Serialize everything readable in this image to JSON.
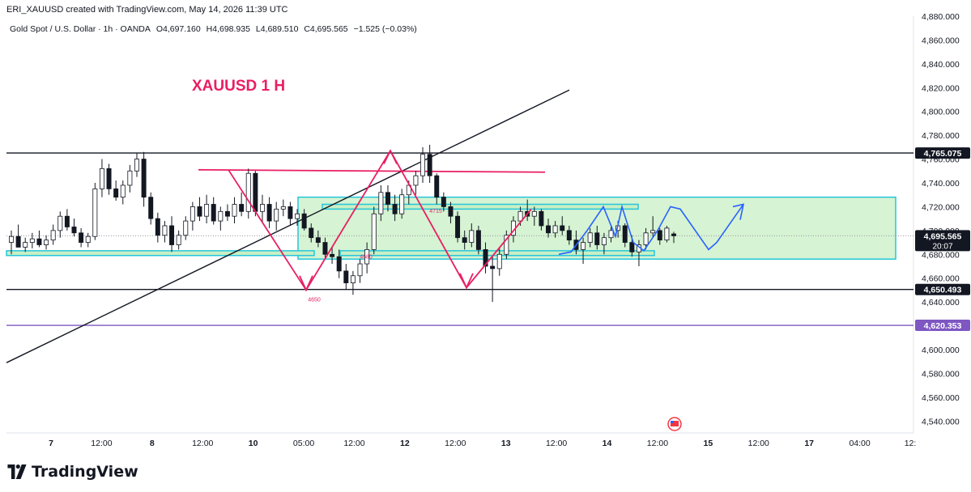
{
  "header": {
    "created_by": "ERI_XAUUSD created with TradingView.com, May 14, 2026 11:39 UTC"
  },
  "legend": {
    "symbol": "Gold Spot / U.S. Dollar · 1h · OANDA",
    "open": "O4,697.160",
    "high": "H4,698.935",
    "low": "L4,689.510",
    "close": "C4,695.565",
    "change": "−1.525 (−0.03%)",
    "change_color": "#f23645"
  },
  "annotation_title": "XAUUSD 1 H",
  "footer": {
    "brand": "TradingView"
  },
  "colors": {
    "bull": "#ffffff",
    "bear": "#131722",
    "zone_fill": "#c8efc4",
    "zone_border": "#26c6da",
    "pink": "#e91e63",
    "blue_arrow": "#2962ff",
    "purple": "#7e57c2"
  },
  "chart_data": {
    "type": "candlestick",
    "title": "XAUUSD 1 H",
    "symbol": "Gold Spot / U.S. Dollar",
    "timeframe": "1h",
    "ylim": [
      4530,
      4880
    ],
    "y_ticks": [
      "4,540.000",
      "4,560.000",
      "4,580.000",
      "4,600.000",
      "4,620.000",
      "4,640.000",
      "4,660.000",
      "4,680.000",
      "4,700.000",
      "4,720.000",
      "4,740.000",
      "4,760.000",
      "4,780.000",
      "4,800.000",
      "4,820.000",
      "4,840.000",
      "4,860.000",
      "4,880.000"
    ],
    "x_ticks": [
      "7",
      "12:00",
      "8",
      "12:00",
      "10",
      "05:00",
      "12:00",
      "12",
      "12:00",
      "13",
      "12:00",
      "14",
      "12:00",
      "15",
      "12:00",
      "17",
      "04:00",
      "12:"
    ],
    "price_labels": [
      {
        "text": "4,765.075",
        "value": 4765.075,
        "color": "#131722"
      },
      {
        "text": "4,695.565",
        "value": 4695.565,
        "color": "#131722",
        "sub": "20:07"
      },
      {
        "text": "4,650.493",
        "value": 4650.493,
        "color": "#131722"
      },
      {
        "text": "4,620.353",
        "value": 4620.353,
        "color": "#7e57c2"
      }
    ],
    "horizontal_lines": [
      4765.075,
      4650.493,
      4620.353
    ],
    "zone": {
      "top": 4728,
      "bottom": 4676
    },
    "small_labels": [
      "4650",
      "4680",
      "4715"
    ],
    "ohlc_last": {
      "open": 4697.16,
      "high": 4698.935,
      "low": 4689.51,
      "close": 4695.565
    },
    "candles": [
      [
        4690,
        4700,
        4680,
        4695
      ],
      [
        4695,
        4705,
        4688,
        4686
      ],
      [
        4686,
        4694,
        4682,
        4690
      ],
      [
        4690,
        4698,
        4685,
        4693
      ],
      [
        4693,
        4700,
        4686,
        4688
      ],
      [
        4688,
        4696,
        4684,
        4692
      ],
      [
        4692,
        4705,
        4688,
        4700
      ],
      [
        4700,
        4716,
        4694,
        4712
      ],
      [
        4712,
        4718,
        4700,
        4703
      ],
      [
        4703,
        4710,
        4695,
        4698
      ],
      [
        4698,
        4702,
        4686,
        4690
      ],
      [
        4690,
        4698,
        4686,
        4695
      ],
      [
        4695,
        4740,
        4692,
        4735
      ],
      [
        4735,
        4760,
        4728,
        4752
      ],
      [
        4752,
        4756,
        4730,
        4735
      ],
      [
        4735,
        4742,
        4725,
        4728
      ],
      [
        4728,
        4742,
        4722,
        4738
      ],
      [
        4738,
        4755,
        4732,
        4750
      ],
      [
        4750,
        4765,
        4745,
        4760
      ],
      [
        4760,
        4766,
        4720,
        4728
      ],
      [
        4728,
        4732,
        4705,
        4710
      ],
      [
        4710,
        4715,
        4690,
        4696
      ],
      [
        4696,
        4708,
        4690,
        4704
      ],
      [
        4704,
        4712,
        4682,
        4688
      ],
      [
        4688,
        4700,
        4684,
        4696
      ],
      [
        4696,
        4712,
        4692,
        4708
      ],
      [
        4708,
        4724,
        4700,
        4720
      ],
      [
        4720,
        4728,
        4708,
        4712
      ],
      [
        4712,
        4730,
        4706,
        4722
      ],
      [
        4722,
        4728,
        4705,
        4708
      ],
      [
        4708,
        4720,
        4700,
        4716
      ],
      [
        4716,
        4722,
        4708,
        4712
      ],
      [
        4712,
        4728,
        4706,
        4722
      ],
      [
        4722,
        4732,
        4712,
        4716
      ],
      [
        4716,
        4752,
        4710,
        4748
      ],
      [
        4748,
        4750,
        4712,
        4716
      ],
      [
        4716,
        4730,
        4706,
        4722
      ],
      [
        4722,
        4728,
        4702,
        4708
      ],
      [
        4708,
        4724,
        4700,
        4718
      ],
      [
        4718,
        4726,
        4712,
        4720
      ],
      [
        4720,
        4724,
        4704,
        4710
      ],
      [
        4710,
        4718,
        4704,
        4714
      ],
      [
        4714,
        4718,
        4700,
        4702
      ],
      [
        4702,
        4706,
        4690,
        4694
      ],
      [
        4694,
        4700,
        4686,
        4690
      ],
      [
        4690,
        4694,
        4676,
        4680
      ],
      [
        4680,
        4686,
        4672,
        4678
      ],
      [
        4678,
        4684,
        4660,
        4666
      ],
      [
        4666,
        4672,
        4650,
        4656
      ],
      [
        4656,
        4666,
        4646,
        4662
      ],
      [
        4662,
        4676,
        4656,
        4672
      ],
      [
        4672,
        4690,
        4664,
        4684
      ],
      [
        4684,
        4720,
        4680,
        4714
      ],
      [
        4714,
        4738,
        4708,
        4732
      ],
      [
        4732,
        4738,
        4716,
        4722
      ],
      [
        4722,
        4730,
        4708,
        4714
      ],
      [
        4714,
        4735,
        4710,
        4730
      ],
      [
        4730,
        4742,
        4722,
        4738
      ],
      [
        4738,
        4750,
        4730,
        4746
      ],
      [
        4746,
        4770,
        4740,
        4764
      ],
      [
        4764,
        4772,
        4740,
        4746
      ],
      [
        4746,
        4748,
        4722,
        4728
      ],
      [
        4728,
        4732,
        4716,
        4720
      ],
      [
        4720,
        4724,
        4706,
        4712
      ],
      [
        4712,
        4716,
        4690,
        4694
      ],
      [
        4694,
        4700,
        4684,
        4690
      ],
      [
        4690,
        4706,
        4686,
        4700
      ],
      [
        4700,
        4704,
        4680,
        4684
      ],
      [
        4684,
        4690,
        4664,
        4670
      ],
      [
        4670,
        4678,
        4640,
        4668
      ],
      [
        4668,
        4686,
        4662,
        4680
      ],
      [
        4680,
        4700,
        4676,
        4696
      ],
      [
        4696,
        4712,
        4690,
        4708
      ],
      [
        4708,
        4720,
        4704,
        4716
      ],
      [
        4716,
        4726,
        4708,
        4712
      ],
      [
        4712,
        4720,
        4704,
        4716
      ],
      [
        4716,
        4718,
        4700,
        4704
      ],
      [
        4704,
        4710,
        4694,
        4698
      ],
      [
        4698,
        4708,
        4694,
        4704
      ],
      [
        4704,
        4712,
        4696,
        4700
      ],
      [
        4700,
        4704,
        4688,
        4692
      ],
      [
        4692,
        4700,
        4680,
        4684
      ],
      [
        4684,
        4694,
        4672,
        4690
      ],
      [
        4690,
        4702,
        4686,
        4698
      ],
      [
        4698,
        4704,
        4684,
        4688
      ],
      [
        4688,
        4698,
        4680,
        4694
      ],
      [
        4694,
        4704,
        4690,
        4700
      ],
      [
        4700,
        4708,
        4694,
        4704
      ],
      [
        4704,
        4706,
        4686,
        4690
      ],
      [
        4690,
        4696,
        4678,
        4682
      ],
      [
        4682,
        4692,
        4670,
        4688
      ],
      [
        4688,
        4702,
        4684,
        4698
      ],
      [
        4698,
        4712,
        4694,
        4700
      ],
      [
        4700,
        4702,
        4688,
        4692
      ],
      [
        4692,
        4704,
        4690,
        4702
      ],
      [
        4697.16,
        4698.935,
        4689.51,
        4695.565
      ]
    ]
  }
}
